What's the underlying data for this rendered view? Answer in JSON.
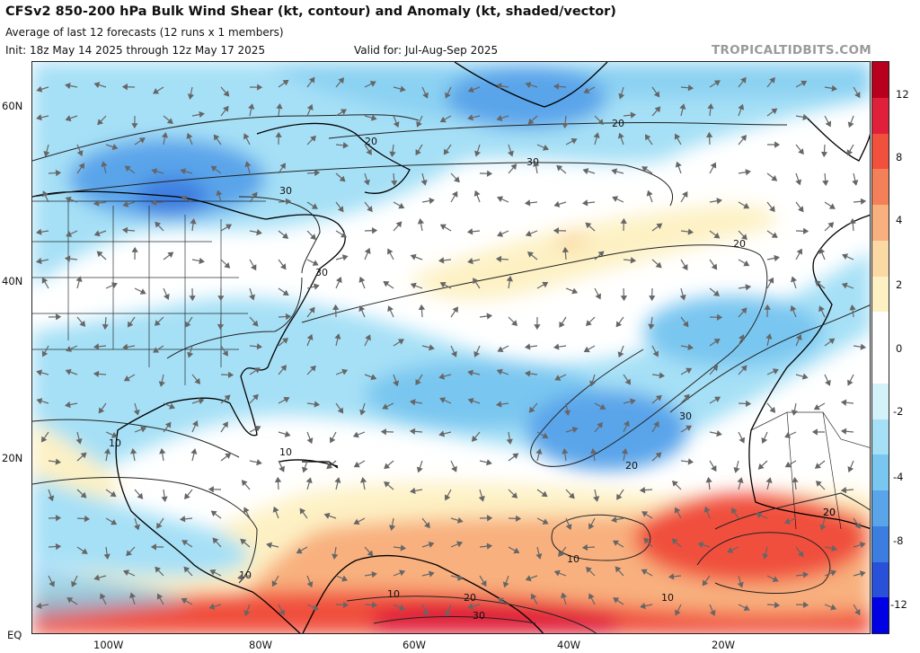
{
  "header": {
    "title": "CFSv2 850-200 hPa Bulk Wind Shear (kt, contour) and Anomaly (kt, shaded/vector)",
    "subtitle": "Average of last 12 forecasts (12 runs x 1 members)",
    "init": "Init: 18z May 14 2025 through 12z May 17 2025",
    "valid": "Valid for: Jul-Aug-Sep 2025",
    "brand": "TROPICALTIDBITS.COM"
  },
  "axes": {
    "lat_labels": [
      "60N",
      "40N",
      "20N",
      "EQ"
    ],
    "lon_labels": [
      "100W",
      "80W",
      "60W",
      "40W",
      "20W"
    ]
  },
  "colorbar": {
    "tick_labels": [
      "12",
      "8",
      "4",
      "2",
      "0",
      "-2",
      "-4",
      "-8",
      "-12"
    ],
    "colors": [
      "#b8001e",
      "#e0203a",
      "#f0503c",
      "#f4805a",
      "#f8b07e",
      "#fbd9a4",
      "#fdf1c4",
      "#ffffff",
      "#ffffff",
      "#d4f2fa",
      "#a6e0f6",
      "#79c6f0",
      "#5aa4ea",
      "#3c7ee0",
      "#2850d8",
      "#0000e4"
    ],
    "range": [
      -14,
      14
    ]
  },
  "contour_labels": [
    "20",
    "30",
    "20",
    "30",
    "30",
    "20",
    "10",
    "10",
    "20",
    "30",
    "20",
    "10",
    "10",
    "20",
    "30",
    "10",
    "20",
    "10"
  ],
  "land_color": "#000000",
  "map_data": {
    "region": "North Atlantic basin",
    "lat_range": [
      "EQ",
      "65N"
    ],
    "lon_range": [
      "110W",
      "10E"
    ]
  }
}
